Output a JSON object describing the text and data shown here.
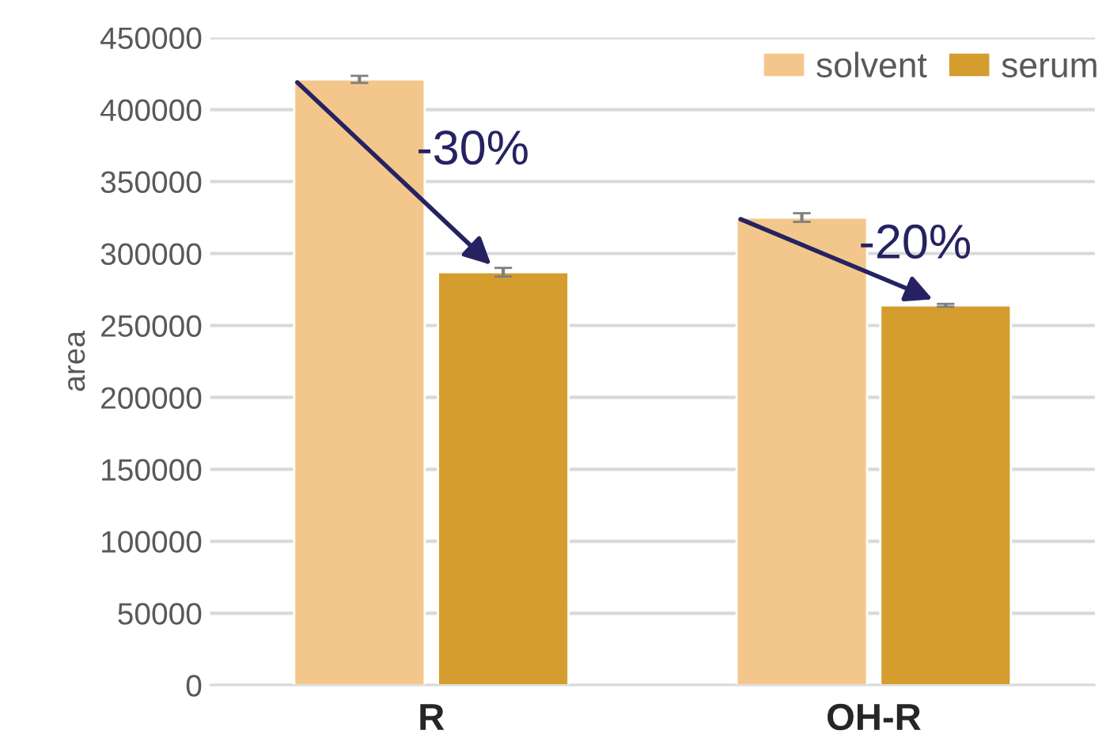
{
  "chart_data": {
    "type": "bar",
    "ylabel": "area",
    "categories": [
      "R",
      "OH-R"
    ],
    "series": [
      {
        "name": "solvent",
        "color": "#f3c78b",
        "values": [
          421000,
          325000
        ],
        "errors": [
          2500,
          3000
        ]
      },
      {
        "name": "serum",
        "color": "#d49d2e",
        "values": [
          287000,
          264000
        ],
        "errors": [
          3000,
          1000
        ]
      }
    ],
    "ylim": [
      0,
      450000
    ],
    "yticks": [
      0,
      50000,
      100000,
      150000,
      200000,
      250000,
      300000,
      350000,
      400000,
      450000
    ],
    "grid": "y",
    "legend": "top right",
    "annotations": [
      "-30%",
      "-20%"
    ]
  }
}
